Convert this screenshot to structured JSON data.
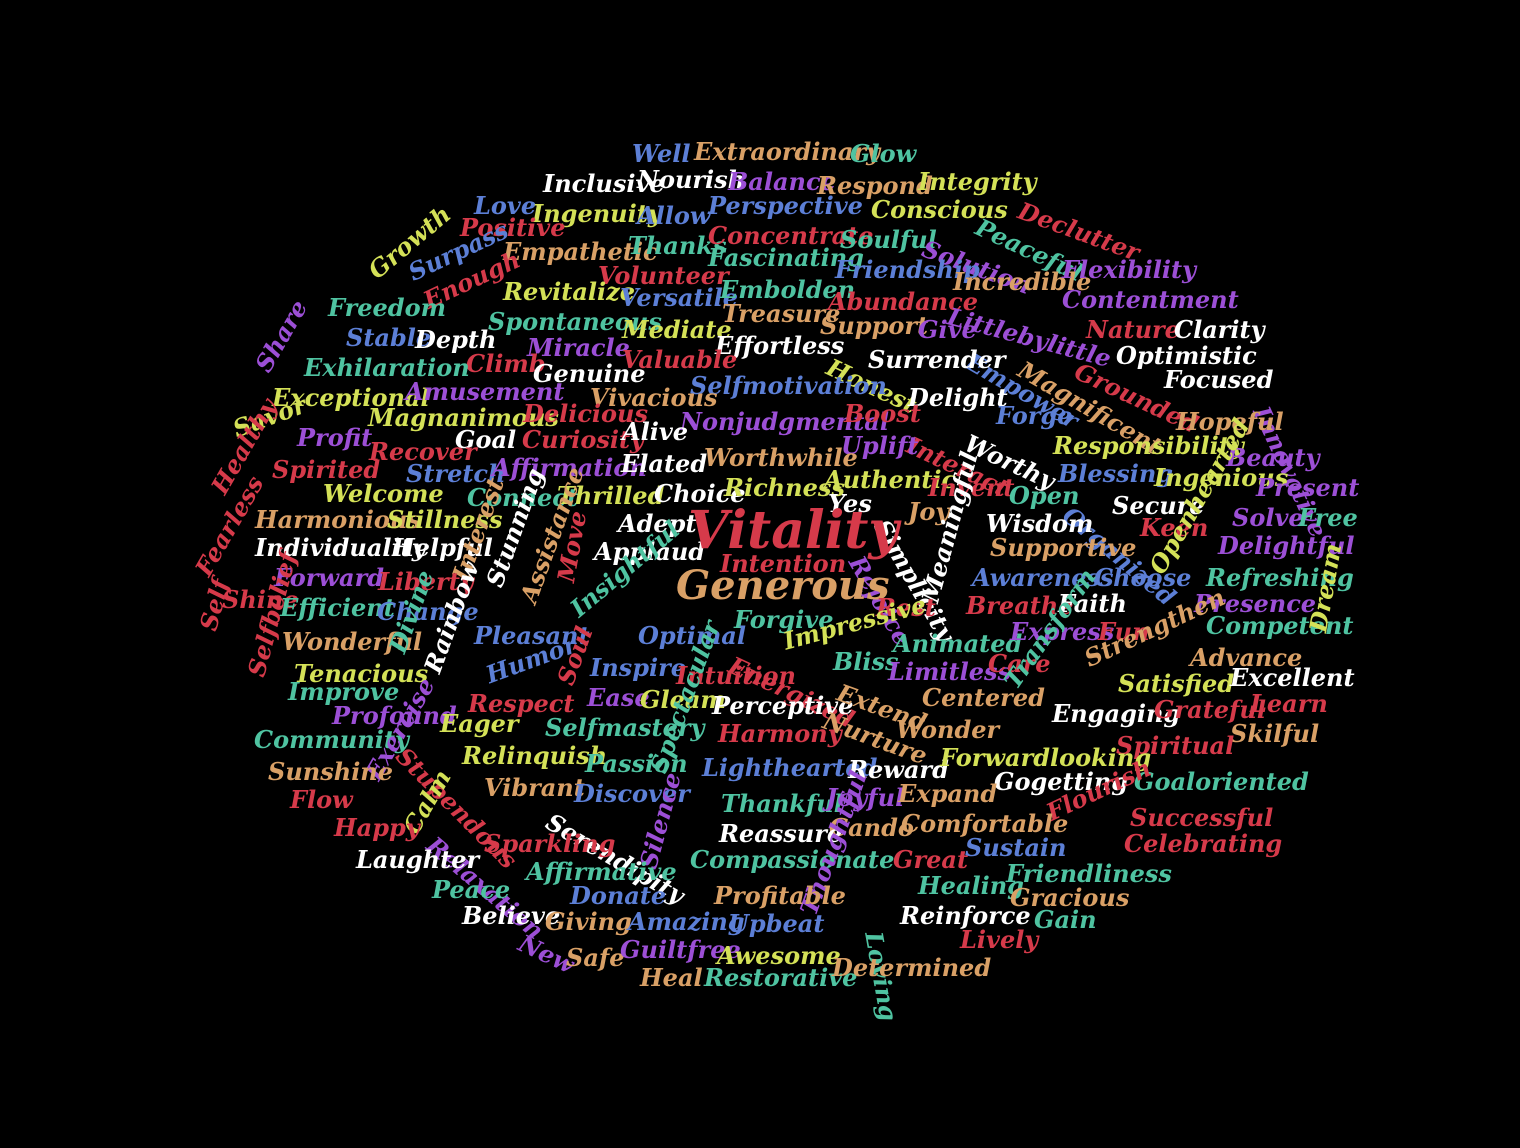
{
  "palette": {
    "red": "#d63a4a",
    "orange": "#d9a066",
    "yellow": "#d4e157",
    "green": "#4fc3a1",
    "blue": "#5c7fd6",
    "purple": "#9c4fd6",
    "white": "#ffffff"
  },
  "words": [
    {
      "text": "Well",
      "color": "blue"
    },
    {
      "text": "Extraordinary",
      "color": "orange"
    },
    {
      "text": "Glow",
      "color": "green"
    },
    {
      "text": "Inclusive",
      "color": "white"
    },
    {
      "text": "Nourish",
      "color": "white"
    },
    {
      "text": "Balance",
      "color": "purple"
    },
    {
      "text": "Respond",
      "color": "orange"
    },
    {
      "text": "Integrity",
      "color": "yellow"
    },
    {
      "text": "Love",
      "color": "blue"
    },
    {
      "text": "Ingenuity",
      "color": "yellow"
    },
    {
      "text": "Allow",
      "color": "blue"
    },
    {
      "text": "Perspective",
      "color": "blue"
    },
    {
      "text": "Conscious",
      "color": "yellow"
    },
    {
      "text": "Peaceful",
      "color": "green"
    },
    {
      "text": "Declutter",
      "color": "red"
    },
    {
      "text": "Growth",
      "color": "yellow"
    },
    {
      "text": "Positive",
      "color": "red"
    },
    {
      "text": "Empathetic",
      "color": "orange"
    },
    {
      "text": "Thanks",
      "color": "green"
    },
    {
      "text": "Concentrate",
      "color": "red"
    },
    {
      "text": "Soulful",
      "color": "green"
    },
    {
      "text": "Solution",
      "color": "purple"
    },
    {
      "text": "Surpass",
      "color": "blue"
    },
    {
      "text": "Volunteer",
      "color": "red"
    },
    {
      "text": "Fascinating",
      "color": "green"
    },
    {
      "text": "Friendship",
      "color": "blue"
    },
    {
      "text": "Incredible",
      "color": "orange"
    },
    {
      "text": "Flexibility",
      "color": "purple"
    },
    {
      "text": "Enough",
      "color": "red"
    },
    {
      "text": "Revitalize",
      "color": "yellow"
    },
    {
      "text": "Versatile",
      "color": "blue"
    },
    {
      "text": "Embolden",
      "color": "green"
    },
    {
      "text": "Abundance",
      "color": "red"
    },
    {
      "text": "Contentment",
      "color": "purple"
    },
    {
      "text": "Freedom",
      "color": "green"
    },
    {
      "text": "Spontaneous",
      "color": "green"
    },
    {
      "text": "Treasure",
      "color": "orange"
    },
    {
      "text": "Littlebylittle",
      "color": "purple"
    },
    {
      "text": "Nature",
      "color": "red"
    },
    {
      "text": "Clarity",
      "color": "white"
    },
    {
      "text": "Share",
      "color": "purple"
    },
    {
      "text": "Stable",
      "color": "blue"
    },
    {
      "text": "Depth",
      "color": "white"
    },
    {
      "text": "Mediate",
      "color": "yellow"
    },
    {
      "text": "Support",
      "color": "orange"
    },
    {
      "text": "Give",
      "color": "purple"
    },
    {
      "text": "Climb",
      "color": "red"
    },
    {
      "text": "Miracle",
      "color": "purple"
    },
    {
      "text": "Effortless",
      "color": "white"
    },
    {
      "text": "Empower",
      "color": "blue"
    },
    {
      "text": "Magnificent",
      "color": "orange"
    },
    {
      "text": "Optimistic",
      "color": "white"
    },
    {
      "text": "Exhilaration",
      "color": "green"
    },
    {
      "text": "Valuable",
      "color": "red"
    },
    {
      "text": "Honest",
      "color": "yellow"
    },
    {
      "text": "Surrender",
      "color": "white"
    },
    {
      "text": "Grounded",
      "color": "red"
    },
    {
      "text": "Focused",
      "color": "white"
    },
    {
      "text": "Genuine",
      "color": "white"
    },
    {
      "text": "Selfmotivation",
      "color": "blue"
    },
    {
      "text": "Innovative",
      "color": "purple"
    },
    {
      "text": "Exceptional",
      "color": "yellow"
    },
    {
      "text": "Amusement",
      "color": "purple"
    },
    {
      "text": "Vivacious",
      "color": "orange"
    },
    {
      "text": "Delight",
      "color": "white"
    },
    {
      "text": "Savor",
      "color": "yellow"
    },
    {
      "text": "Magnanimous",
      "color": "yellow"
    },
    {
      "text": "Delicious",
      "color": "red"
    },
    {
      "text": "Nonjudgmental",
      "color": "purple"
    },
    {
      "text": "Boost",
      "color": "red"
    },
    {
      "text": "Forge",
      "color": "blue"
    },
    {
      "text": "Hopeful",
      "color": "orange"
    },
    {
      "text": "Profit",
      "color": "purple"
    },
    {
      "text": "Goal",
      "color": "white"
    },
    {
      "text": "Curiosity",
      "color": "red"
    },
    {
      "text": "Alive",
      "color": "white"
    },
    {
      "text": "Interact",
      "color": "red"
    },
    {
      "text": "Worthy",
      "color": "white"
    },
    {
      "text": "Responsibility",
      "color": "yellow"
    },
    {
      "text": "Healthy",
      "color": "red"
    },
    {
      "text": "Recover",
      "color": "red"
    },
    {
      "text": "Uplift",
      "color": "purple"
    },
    {
      "text": "Beauty",
      "color": "purple"
    },
    {
      "text": "Spirited",
      "color": "red"
    },
    {
      "text": "Stretch",
      "color": "blue"
    },
    {
      "text": "Affirmation",
      "color": "purple"
    },
    {
      "text": "Elated",
      "color": "white"
    },
    {
      "text": "Worthwhile",
      "color": "orange"
    },
    {
      "text": "Blessing",
      "color": "blue"
    },
    {
      "text": "Ingenious",
      "color": "yellow"
    },
    {
      "text": "Welcome",
      "color": "yellow"
    },
    {
      "text": "Connect",
      "color": "green"
    },
    {
      "text": "Thrilled",
      "color": "yellow"
    },
    {
      "text": "Choice",
      "color": "white"
    },
    {
      "text": "Richness",
      "color": "yellow"
    },
    {
      "text": "Authentic",
      "color": "yellow"
    },
    {
      "text": "Invent",
      "color": "red"
    },
    {
      "text": "Open",
      "color": "green"
    },
    {
      "text": "Present",
      "color": "purple"
    },
    {
      "text": "Fearless",
      "color": "red"
    },
    {
      "text": "Harmonious",
      "color": "orange"
    },
    {
      "text": "Stillness",
      "color": "yellow"
    },
    {
      "text": "Adept",
      "color": "white"
    },
    {
      "text": "Yes",
      "color": "white"
    },
    {
      "text": "Simplicity",
      "color": "white"
    },
    {
      "text": "Joy",
      "color": "orange"
    },
    {
      "text": "Organized",
      "color": "blue"
    },
    {
      "text": "Secure",
      "color": "white"
    },
    {
      "text": "Wisdom",
      "color": "white"
    },
    {
      "text": "Keen",
      "color": "red"
    },
    {
      "text": "Solve",
      "color": "purple"
    },
    {
      "text": "Free",
      "color": "green"
    },
    {
      "text": "Openhearted",
      "color": "yellow"
    },
    {
      "text": "Individuality",
      "color": "white"
    },
    {
      "text": "Helpful",
      "color": "white"
    },
    {
      "text": "Interest",
      "color": "orange"
    },
    {
      "text": "Stunning",
      "color": "white"
    },
    {
      "text": "Assistance",
      "color": "orange"
    },
    {
      "text": "Applaud",
      "color": "white"
    },
    {
      "text": "Rejoice",
      "color": "purple"
    },
    {
      "text": "Meaningful",
      "color": "white"
    },
    {
      "text": "Supportive",
      "color": "orange"
    },
    {
      "text": "Delightful",
      "color": "purple"
    },
    {
      "text": "Vitality",
      "color": "red"
    },
    {
      "text": "Intention",
      "color": "red"
    },
    {
      "text": "Generous",
      "color": "orange"
    },
    {
      "text": "Forward",
      "color": "purple"
    },
    {
      "text": "Liberty",
      "color": "red"
    },
    {
      "text": "Move",
      "color": "red"
    },
    {
      "text": "Awareness",
      "color": "blue"
    },
    {
      "text": "Choose",
      "color": "blue"
    },
    {
      "text": "Refreshing",
      "color": "green"
    },
    {
      "text": "Self",
      "color": "red"
    },
    {
      "text": "Shine",
      "color": "red"
    },
    {
      "text": "Efficient",
      "color": "green"
    },
    {
      "text": "Change",
      "color": "blue"
    },
    {
      "text": "Insightful",
      "color": "green"
    },
    {
      "text": "Rest",
      "color": "red"
    },
    {
      "text": "Breathe",
      "color": "red"
    },
    {
      "text": "Faith",
      "color": "white"
    },
    {
      "text": "Presence",
      "color": "purple"
    },
    {
      "text": "Selfbelief",
      "color": "red"
    },
    {
      "text": "Forgive",
      "color": "green"
    },
    {
      "text": "Competent",
      "color": "green"
    },
    {
      "text": "Dream",
      "color": "yellow"
    },
    {
      "text": "Wonderful",
      "color": "orange"
    },
    {
      "text": "Divine",
      "color": "green"
    },
    {
      "text": "Pleasant",
      "color": "blue"
    },
    {
      "text": "Optimal",
      "color": "blue"
    },
    {
      "text": "Impressive",
      "color": "yellow"
    },
    {
      "text": "Animated",
      "color": "green"
    },
    {
      "text": "Express",
      "color": "purple"
    },
    {
      "text": "Fun",
      "color": "red"
    },
    {
      "text": "Tenacious",
      "color": "yellow"
    },
    {
      "text": "Rainbow",
      "color": "white"
    },
    {
      "text": "Energized",
      "color": "red"
    },
    {
      "text": "Bliss",
      "color": "green"
    },
    {
      "text": "Limitless",
      "color": "purple"
    },
    {
      "text": "Care",
      "color": "red"
    },
    {
      "text": "Strengthen",
      "color": "orange"
    },
    {
      "text": "Advance",
      "color": "orange"
    },
    {
      "text": "Improve",
      "color": "green"
    },
    {
      "text": "Humor",
      "color": "blue"
    },
    {
      "text": "Soul",
      "color": "red"
    },
    {
      "text": "Inspire",
      "color": "blue"
    },
    {
      "text": "Intuition",
      "color": "red"
    },
    {
      "text": "Transform",
      "color": "green"
    },
    {
      "text": "Satisfied",
      "color": "yellow"
    },
    {
      "text": "Excellent",
      "color": "white"
    },
    {
      "text": "Profound",
      "color": "purple"
    },
    {
      "text": "Respect",
      "color": "red"
    },
    {
      "text": "Ease",
      "color": "purple"
    },
    {
      "text": "Gleam",
      "color": "yellow"
    },
    {
      "text": "Perceptive",
      "color": "white"
    },
    {
      "text": "Extend",
      "color": "orange"
    },
    {
      "text": "Centered",
      "color": "orange"
    },
    {
      "text": "Engaging",
      "color": "white"
    },
    {
      "text": "Grateful",
      "color": "red"
    },
    {
      "text": "Learn",
      "color": "red"
    },
    {
      "text": "Eager",
      "color": "yellow"
    },
    {
      "text": "Selfmastery",
      "color": "green"
    },
    {
      "text": "Nurture",
      "color": "orange"
    },
    {
      "text": "Wonder",
      "color": "orange"
    },
    {
      "text": "Skilful",
      "color": "orange"
    },
    {
      "text": "Community",
      "color": "green"
    },
    {
      "text": "Exercise",
      "color": "purple"
    },
    {
      "text": "Harmony",
      "color": "red"
    },
    {
      "text": "Spiritual",
      "color": "red"
    },
    {
      "text": "Sunshine",
      "color": "orange"
    },
    {
      "text": "Stupendous",
      "color": "red"
    },
    {
      "text": "Relinquish",
      "color": "yellow"
    },
    {
      "text": "Passion",
      "color": "green"
    },
    {
      "text": "Spectacular",
      "color": "green"
    },
    {
      "text": "Lighthearted",
      "color": "blue"
    },
    {
      "text": "Reward",
      "color": "white"
    },
    {
      "text": "Forwardlooking",
      "color": "yellow"
    },
    {
      "text": "Vibrant",
      "color": "orange"
    },
    {
      "text": "Gogetting",
      "color": "white"
    },
    {
      "text": "Goaloriented",
      "color": "green"
    },
    {
      "text": "Flow",
      "color": "red"
    },
    {
      "text": "Calm",
      "color": "yellow"
    },
    {
      "text": "Discover",
      "color": "blue"
    },
    {
      "text": "Thankful",
      "color": "green"
    },
    {
      "text": "Joyful",
      "color": "purple"
    },
    {
      "text": "Expand",
      "color": "orange"
    },
    {
      "text": "Flourish",
      "color": "red"
    },
    {
      "text": "Happy",
      "color": "red"
    },
    {
      "text": "Serendipity",
      "color": "white"
    },
    {
      "text": "Cando",
      "color": "orange"
    },
    {
      "text": "Comfortable",
      "color": "orange"
    },
    {
      "text": "Successful",
      "color": "red"
    },
    {
      "text": "Relaxation",
      "color": "purple"
    },
    {
      "text": "Sparkling",
      "color": "red"
    },
    {
      "text": "Reassure",
      "color": "white"
    },
    {
      "text": "Sustain",
      "color": "blue"
    },
    {
      "text": "Celebrating",
      "color": "red"
    },
    {
      "text": "Laughter",
      "color": "white"
    },
    {
      "text": "Silence",
      "color": "purple"
    },
    {
      "text": "Compassionate",
      "color": "green"
    },
    {
      "text": "Great",
      "color": "red"
    },
    {
      "text": "Affirmative",
      "color": "green"
    },
    {
      "text": "Thoughtful",
      "color": "purple"
    },
    {
      "text": "Friendliness",
      "color": "green"
    },
    {
      "text": "Peace",
      "color": "green"
    },
    {
      "text": "Donate",
      "color": "blue"
    },
    {
      "text": "Profitable",
      "color": "orange"
    },
    {
      "text": "Healing",
      "color": "green"
    },
    {
      "text": "Gracious",
      "color": "orange"
    },
    {
      "text": "Believe",
      "color": "white"
    },
    {
      "text": "Giving",
      "color": "orange"
    },
    {
      "text": "Amazing",
      "color": "blue"
    },
    {
      "text": "Upbeat",
      "color": "blue"
    },
    {
      "text": "Loving",
      "color": "green"
    },
    {
      "text": "Reinforce",
      "color": "white"
    },
    {
      "text": "Gain",
      "color": "green"
    },
    {
      "text": "New",
      "color": "purple"
    },
    {
      "text": "Safe",
      "color": "orange"
    },
    {
      "text": "Guiltfree",
      "color": "purple"
    },
    {
      "text": "Awesome",
      "color": "yellow"
    },
    {
      "text": "Lively",
      "color": "red"
    },
    {
      "text": "Heal",
      "color": "orange"
    },
    {
      "text": "Restorative",
      "color": "green"
    },
    {
      "text": "Determined",
      "color": "orange"
    }
  ]
}
